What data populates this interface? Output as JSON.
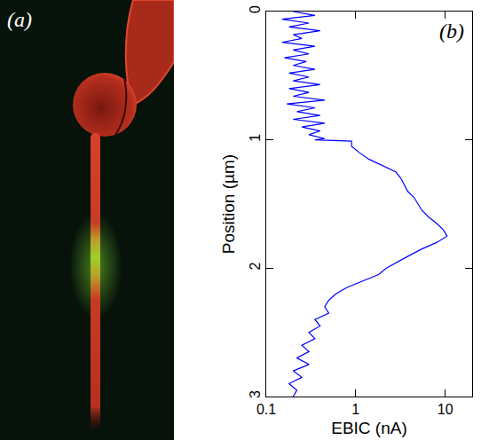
{
  "photo": {
    "label": "(a)"
  },
  "chart_data": {
    "type": "line",
    "log": "x",
    "grid": false,
    "annotations": [
      "(b)"
    ],
    "x_label": "EBIC (nA)",
    "y_label": "Position (µm)",
    "color": "#0000ff",
    "xlim": [
      0.1,
      20
    ],
    "xticks": [
      0.1,
      1,
      10
    ],
    "ylim": [
      3,
      0
    ],
    "yticks": [
      0,
      1,
      2,
      3
    ],
    "x": [
      0.2,
      0.35,
      0.15,
      0.3,
      0.18,
      0.4,
      0.2,
      0.25,
      0.15,
      0.35,
      0.2,
      0.3,
      0.16,
      0.28,
      0.2,
      0.35,
      0.18,
      0.3,
      0.2,
      0.4,
      0.18,
      0.3,
      0.2,
      0.45,
      0.17,
      0.35,
      0.22,
      0.4,
      0.2,
      0.45,
      0.25,
      0.4,
      0.3,
      0.45,
      0.35,
      0.9,
      0.9,
      1.1,
      1.4,
      2.0,
      2.8,
      3.2,
      3.5,
      3.8,
      4.5,
      5.0,
      5.5,
      6.5,
      8.0,
      9.5,
      10.5,
      8.0,
      5.5,
      4.0,
      3.0,
      2.2,
      1.8,
      1.2,
      0.8,
      0.6,
      0.5,
      0.45,
      0.5,
      0.35,
      0.4,
      0.3,
      0.35,
      0.25,
      0.3,
      0.22,
      0.3,
      0.2,
      0.25,
      0.18,
      0.22,
      0.2
    ],
    "y": [
      0.0,
      0.03,
      0.06,
      0.09,
      0.12,
      0.15,
      0.18,
      0.21,
      0.24,
      0.27,
      0.3,
      0.33,
      0.36,
      0.39,
      0.42,
      0.45,
      0.48,
      0.51,
      0.54,
      0.57,
      0.6,
      0.63,
      0.66,
      0.69,
      0.72,
      0.75,
      0.78,
      0.81,
      0.84,
      0.87,
      0.9,
      0.93,
      0.96,
      0.99,
      1.0,
      1.01,
      1.05,
      1.1,
      1.15,
      1.2,
      1.25,
      1.3,
      1.35,
      1.4,
      1.45,
      1.5,
      1.55,
      1.6,
      1.65,
      1.7,
      1.75,
      1.8,
      1.85,
      1.9,
      1.95,
      2.0,
      2.05,
      2.1,
      2.15,
      2.2,
      2.25,
      2.3,
      2.35,
      2.4,
      2.45,
      2.5,
      2.55,
      2.6,
      2.65,
      2.7,
      2.75,
      2.8,
      2.85,
      2.9,
      2.95,
      3.0
    ]
  }
}
